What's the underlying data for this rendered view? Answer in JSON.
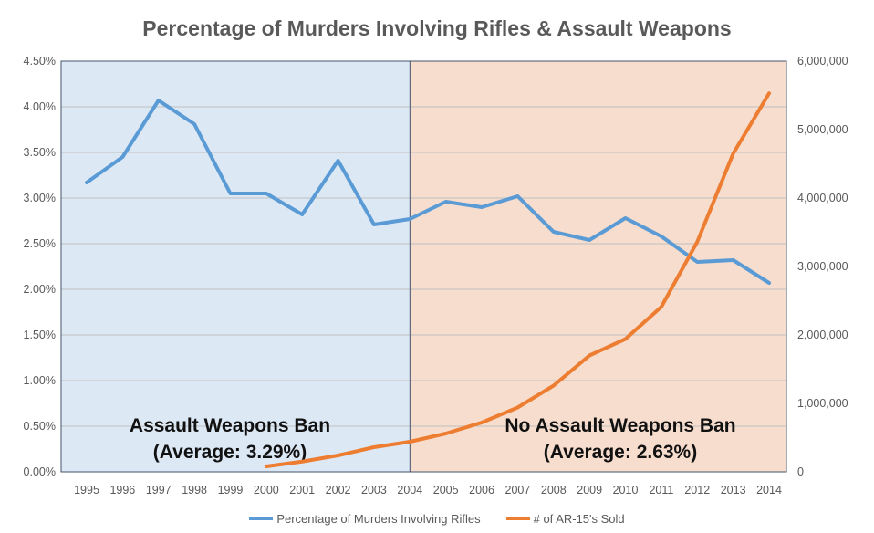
{
  "chart_data": {
    "type": "line",
    "title": "Percentage of Murders Involving Rifles & Assault Weapons",
    "categories": [
      "1995",
      "1996",
      "1997",
      "1998",
      "1999",
      "2000",
      "2001",
      "2002",
      "2003",
      "2004",
      "2005",
      "2006",
      "2007",
      "2008",
      "2009",
      "2010",
      "2011",
      "2012",
      "2013",
      "2014"
    ],
    "series": [
      {
        "name": "Percentage of Murders Involving Rifles",
        "axis": "left",
        "color": "#5B9BD5",
        "values": [
          3.17,
          3.45,
          4.07,
          3.81,
          3.05,
          3.05,
          2.82,
          3.41,
          2.71,
          2.77,
          2.96,
          2.9,
          3.02,
          2.63,
          2.54,
          2.78,
          2.58,
          2.3,
          2.32,
          2.07
        ]
      },
      {
        "name": "# of AR-15's Sold",
        "axis": "right",
        "color": "#ED7D31",
        "values": [
          null,
          null,
          null,
          null,
          null,
          80000,
          150000,
          240000,
          360000,
          440000,
          560000,
          720000,
          940000,
          1260000,
          1700000,
          1940000,
          2410000,
          3360000,
          4650000,
          5530000
        ]
      }
    ],
    "y_left": {
      "range": [
        0,
        4.5
      ],
      "ticks": [
        "0.00%",
        "0.50%",
        "1.00%",
        "1.50%",
        "2.00%",
        "2.50%",
        "3.00%",
        "3.50%",
        "4.00%",
        "4.50%"
      ]
    },
    "y_right": {
      "range": [
        0,
        6000000
      ],
      "ticks": [
        "0",
        "1,000,000",
        "2,000,000",
        "3,000,000",
        "4,000,000",
        "5,000,000",
        "6,000,000"
      ]
    },
    "grid": true,
    "legend": "bottom",
    "regions": [
      {
        "label": "Assault Weapons Ban",
        "sublabel": "(Average: 3.29%)",
        "from": "1995",
        "to": "2004",
        "color": "#DDE8F5"
      },
      {
        "label": "No Assault Weapons Ban",
        "sublabel": "(Average: 2.63%)",
        "from": "2004",
        "to": "2014",
        "color": "#F6DDCE"
      }
    ]
  }
}
